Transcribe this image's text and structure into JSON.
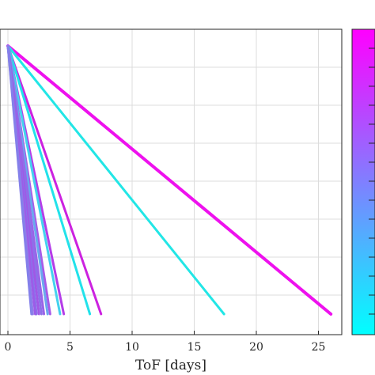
{
  "chart_data": {
    "type": "line",
    "title": "",
    "xlabel": "ToF [days]",
    "ylabel": "",
    "xlim": [
      0,
      27
    ],
    "x_ticks": [
      0,
      5,
      10,
      15,
      20,
      25
    ],
    "x_tick_labels": [
      "0",
      "5",
      "10",
      "15",
      "20",
      "25"
    ],
    "grid": true,
    "colorbar": {
      "position": "right",
      "gradient": [
        "#00ffff",
        "#ff00ff"
      ],
      "tick_labels": []
    },
    "series": [
      {
        "x": [
          0,
          26.0
        ],
        "y": [
          1,
          0
        ],
        "color": "#ee11ee"
      },
      {
        "x": [
          0,
          17.4
        ],
        "y": [
          1,
          0
        ],
        "color": "#22e6e6"
      },
      {
        "x": [
          0,
          7.5
        ],
        "y": [
          1,
          0
        ],
        "color": "#cc22e0"
      },
      {
        "x": [
          0,
          6.6
        ],
        "y": [
          1,
          0
        ],
        "color": "#22e2ea"
      },
      {
        "x": [
          0,
          4.5
        ],
        "y": [
          1,
          0
        ],
        "color": "#b43de8"
      },
      {
        "x": [
          0,
          4.2
        ],
        "y": [
          1,
          0
        ],
        "color": "#44d2ee"
      },
      {
        "x": [
          0,
          3.4
        ],
        "y": [
          1,
          0
        ],
        "color": "#a85ae8"
      },
      {
        "x": [
          0,
          3.2
        ],
        "y": [
          1,
          0
        ],
        "color": "#6aa8ee"
      },
      {
        "x": [
          0,
          2.9
        ],
        "y": [
          1,
          0
        ],
        "color": "#9a64e8"
      },
      {
        "x": [
          0,
          2.7
        ],
        "y": [
          1,
          0
        ],
        "color": "#8e70e8"
      },
      {
        "x": [
          0,
          2.5
        ],
        "y": [
          1,
          0
        ],
        "color": "#a058e6"
      },
      {
        "x": [
          0,
          2.3
        ],
        "y": [
          1,
          0
        ],
        "color": "#8a74ea"
      },
      {
        "x": [
          0,
          2.2
        ],
        "y": [
          1,
          0
        ],
        "color": "#9c5ce8"
      },
      {
        "x": [
          0,
          2.0
        ],
        "y": [
          1,
          0
        ],
        "color": "#947ae8"
      },
      {
        "x": [
          0,
          1.9
        ],
        "y": [
          1,
          0
        ],
        "color": "#8480ea"
      }
    ]
  }
}
